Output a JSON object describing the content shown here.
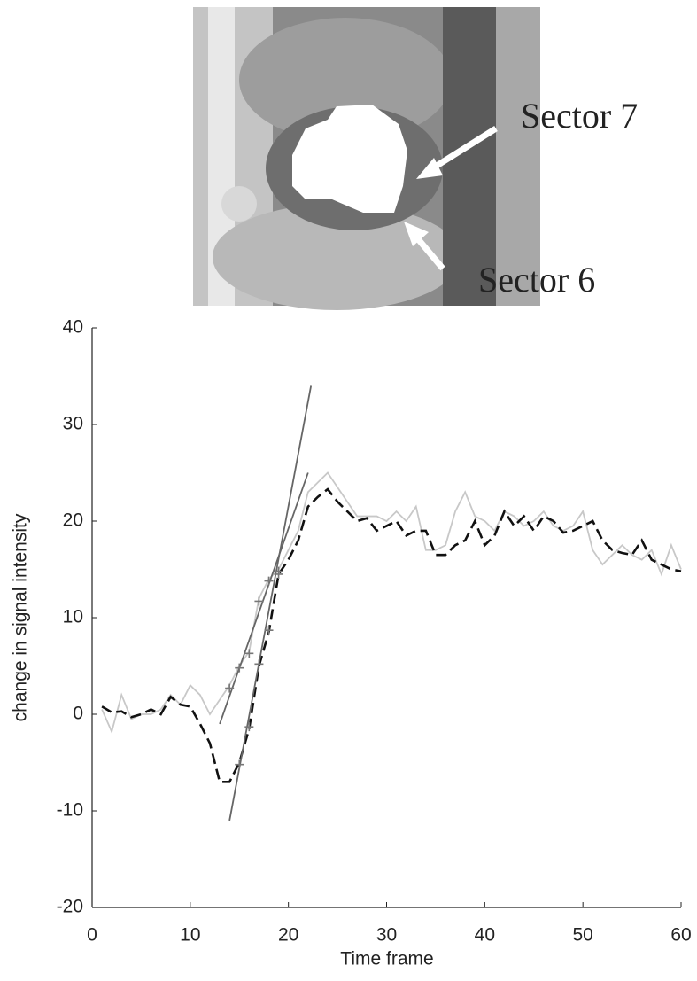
{
  "image": {
    "labels": [
      "Sector 7",
      "Sector 6"
    ]
  },
  "chart_data": {
    "type": "line",
    "xlabel": "Time frame",
    "ylabel": "change in signal intensity",
    "xlim": [
      0,
      60
    ],
    "xticks": [
      0,
      10,
      20,
      30,
      40,
      50,
      60
    ],
    "ylim": [
      -20,
      40
    ],
    "yticks": [
      -20,
      -10,
      0,
      10,
      20,
      30,
      40
    ],
    "series": [
      {
        "style": "solid",
        "color": "#c8c8c8",
        "x": [
          1,
          2,
          3,
          4,
          5,
          6,
          7,
          8,
          9,
          10,
          11,
          12,
          13,
          14,
          15,
          16,
          17,
          18,
          19,
          20,
          21,
          22,
          23,
          24,
          25,
          26,
          27,
          28,
          29,
          30,
          31,
          32,
          33,
          34,
          35,
          36,
          37,
          38,
          39,
          40,
          41,
          42,
          43,
          44,
          45,
          46,
          47,
          48,
          49,
          50,
          51,
          52,
          53,
          54,
          55,
          56,
          57,
          58,
          59,
          60
        ],
        "values": [
          0.5,
          -1.8,
          2,
          -0.5,
          0,
          0,
          0.5,
          2,
          1,
          3,
          2,
          0,
          1.5,
          3,
          5,
          6.5,
          12,
          14,
          15,
          17,
          19,
          23,
          24,
          25,
          23.5,
          22,
          20.5,
          20.5,
          20.5,
          20,
          21,
          20,
          21.5,
          17,
          17,
          17.5,
          21,
          23,
          20.5,
          20,
          19,
          21,
          20.5,
          19.5,
          20,
          21,
          19.5,
          19,
          19.5,
          21,
          17,
          15.5,
          16.5,
          17.5,
          16.5,
          16,
          17,
          14.5,
          17.5,
          15
        ]
      },
      {
        "style": "dashed",
        "color": "#111111",
        "x": [
          1,
          2,
          3,
          4,
          5,
          6,
          7,
          8,
          9,
          10,
          11,
          12,
          13,
          14,
          15,
          16,
          17,
          18,
          19,
          20,
          21,
          22,
          23,
          24,
          25,
          26,
          27,
          28,
          29,
          30,
          31,
          32,
          33,
          34,
          35,
          36,
          37,
          38,
          39,
          40,
          41,
          42,
          43,
          44,
          45,
          46,
          47,
          48,
          49,
          50,
          51,
          52,
          53,
          54,
          55,
          56,
          57,
          58,
          59,
          60
        ],
        "values": [
          0.8,
          0.2,
          0.3,
          -0.3,
          0,
          0.5,
          0,
          1.8,
          1,
          0.8,
          -1,
          -3,
          -7,
          -7,
          -5,
          -1.5,
          5,
          8.5,
          14.5,
          16,
          18,
          21.5,
          22.5,
          23.3,
          22,
          21,
          20,
          20.3,
          19,
          19.5,
          20,
          18.5,
          19,
          19,
          16.5,
          16.5,
          17.5,
          18,
          20,
          17.5,
          18.5,
          21,
          19.5,
          20.5,
          19,
          20.5,
          20,
          18.8,
          19,
          19.5,
          20,
          18,
          17,
          16.7,
          16.5,
          18,
          16,
          15.5,
          15,
          14.8
        ]
      },
      {
        "style": "solid",
        "color": "#666666",
        "x": [
          13,
          22
        ],
        "values": [
          -1,
          25
        ]
      },
      {
        "style": "solid",
        "color": "#666666",
        "x": [
          14,
          22.3
        ],
        "values": [
          -11,
          34
        ]
      },
      {
        "style": "cross",
        "color": "#777777",
        "x": [
          14,
          15,
          16,
          17,
          18,
          19
        ],
        "values": [
          2.7,
          4.8,
          6.3,
          11.7,
          13.8,
          14.8
        ]
      },
      {
        "style": "cross",
        "color": "#777777",
        "x": [
          15,
          16,
          17,
          18,
          19
        ],
        "values": [
          -5.2,
          -1.3,
          5.2,
          8.7,
          14.5
        ]
      }
    ]
  }
}
